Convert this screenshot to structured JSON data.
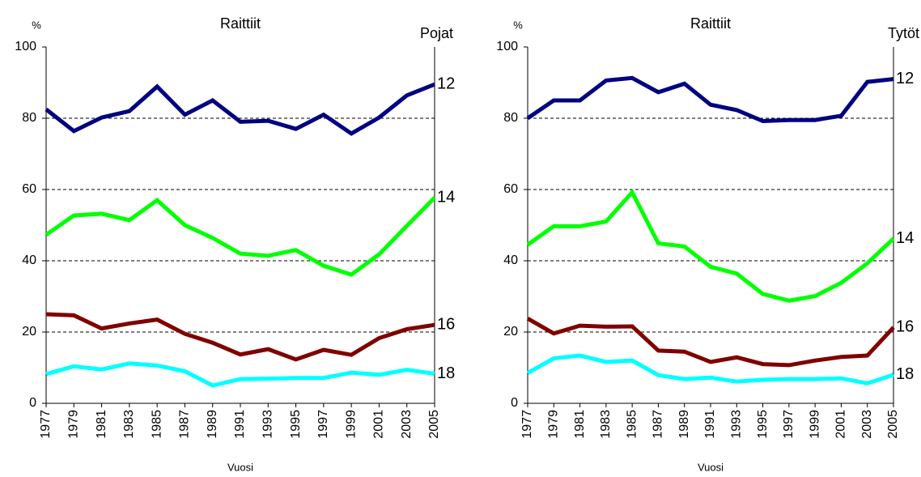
{
  "chart_data": [
    {
      "type": "line",
      "title": "Raittiit",
      "subtitle": "Pojat",
      "ylabel": "%",
      "xlabel": "Vuosi",
      "categories": [
        "1977",
        "1979",
        "1981",
        "1983",
        "1985",
        "1987",
        "1989",
        "1991",
        "1993",
        "1995",
        "1997",
        "1999",
        "2001",
        "2003",
        "2005"
      ],
      "ylim": [
        0,
        100
      ],
      "yticks": [
        0,
        20,
        40,
        60,
        80,
        100
      ],
      "grid": true,
      "series": [
        {
          "name": "12",
          "color": "#000080",
          "values": [
            82.5,
            76.4,
            80.2,
            82,
            88.9,
            81,
            85,
            79,
            79.3,
            77,
            81,
            75.7,
            80.2,
            86.4,
            89.5
          ]
        },
        {
          "name": "14",
          "color": "#00ff00",
          "values": [
            47.3,
            52.7,
            53.2,
            51.4,
            57,
            50,
            46.4,
            42,
            41.4,
            43,
            38.6,
            36.1,
            41.8,
            49.8,
            57.7
          ]
        },
        {
          "name": "16",
          "color": "#800000",
          "values": [
            25,
            24.7,
            21,
            22.4,
            23.5,
            19.5,
            17,
            13.7,
            15.2,
            12.3,
            15,
            13.6,
            18.3,
            20.8,
            22
          ]
        },
        {
          "name": "18",
          "color": "#00ffff",
          "values": [
            8.2,
            10.4,
            9.5,
            11.2,
            10.6,
            9,
            5,
            6.8,
            6.9,
            7.1,
            7.1,
            8.6,
            8,
            9.4,
            8.3
          ]
        }
      ]
    },
    {
      "type": "line",
      "title": "Raittiit",
      "subtitle": "Tytöt",
      "ylabel": "%",
      "xlabel": "Vuosi",
      "categories": [
        "1977",
        "1979",
        "1981",
        "1983",
        "1985",
        "1987",
        "1989",
        "1991",
        "1993",
        "1995",
        "1997",
        "1999",
        "2001",
        "2003",
        "2005"
      ],
      "ylim": [
        0,
        100
      ],
      "yticks": [
        0,
        20,
        40,
        60,
        80,
        100
      ],
      "grid": true,
      "series": [
        {
          "name": "12",
          "color": "#000080",
          "values": [
            80,
            85,
            85,
            90.6,
            91.3,
            87.3,
            89.7,
            83.8,
            82.3,
            79.2,
            79.5,
            79.5,
            80.7,
            90.2,
            91
          ]
        },
        {
          "name": "14",
          "color": "#00ff00",
          "values": [
            44.5,
            49.7,
            49.7,
            51,
            59.2,
            44.9,
            44,
            38.3,
            36.4,
            30.7,
            28.8,
            30.1,
            33.8,
            39.3,
            46.2
          ]
        },
        {
          "name": "16",
          "color": "#800000",
          "values": [
            23.8,
            19.6,
            21.8,
            21.5,
            21.6,
            14.8,
            14.5,
            11.6,
            12.9,
            11,
            10.7,
            12,
            13,
            13.4,
            21.3
          ]
        },
        {
          "name": "18",
          "color": "#00ffff",
          "values": [
            8.5,
            12.6,
            13.4,
            11.6,
            12,
            7.9,
            6.8,
            7.2,
            6.1,
            6.6,
            6.8,
            6.8,
            7,
            5.6,
            8
          ]
        }
      ]
    }
  ]
}
